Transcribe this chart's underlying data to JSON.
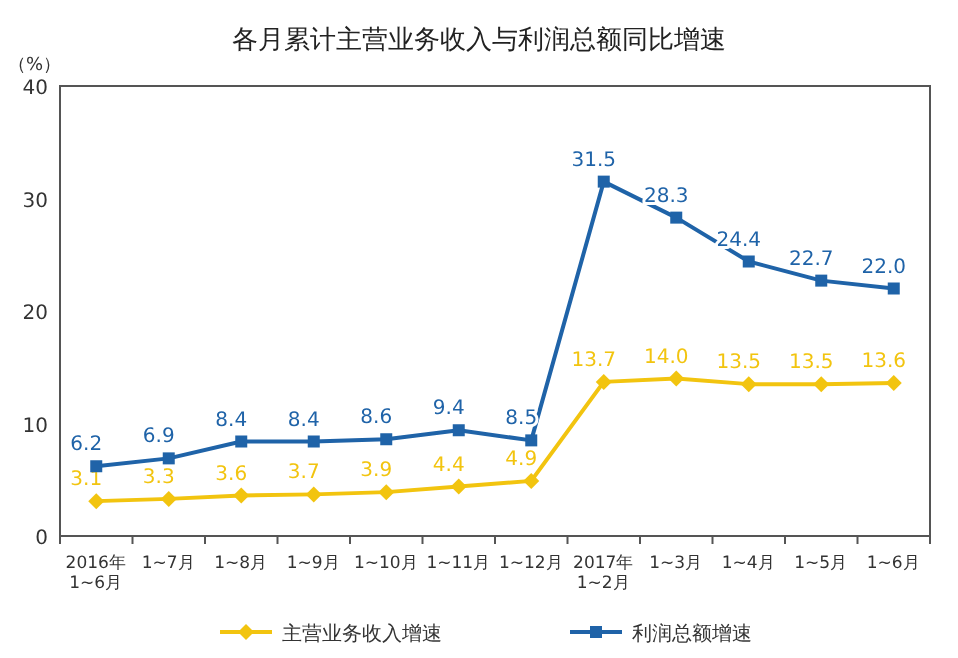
{
  "chart_data": {
    "type": "line",
    "title": "各月累计主营业务收入与利润总额同比增速",
    "ylabel": "（%）",
    "categories": [
      "2016年\n1~6月",
      "1~7月",
      "1~8月",
      "1~9月",
      "1~10月",
      "1~11月",
      "1~12月",
      "2017年\n1~2月",
      "1~3月",
      "1~4月",
      "1~5月",
      "1~6月"
    ],
    "series": [
      {
        "name": "主营业务收入增速",
        "color": "#f2c40f",
        "marker": "diamond",
        "values": [
          3.1,
          3.3,
          3.6,
          3.7,
          3.9,
          4.4,
          4.9,
          13.7,
          14.0,
          13.5,
          13.5,
          13.6
        ],
        "value_labels": [
          "3.1",
          "3.3",
          "3.6",
          "3.7",
          "3.9",
          "4.4",
          "4.9",
          "13.7",
          "14.0",
          "13.5",
          "13.5",
          "13.6"
        ]
      },
      {
        "name": "利润总额增速",
        "color": "#1f63a8",
        "marker": "square",
        "values": [
          6.2,
          6.9,
          8.4,
          8.4,
          8.6,
          9.4,
          8.5,
          31.5,
          28.3,
          24.4,
          22.7,
          22.0
        ],
        "value_labels": [
          "6.2",
          "6.9",
          "8.4",
          "8.4",
          "8.6",
          "9.4",
          "8.5",
          "31.5",
          "28.3",
          "24.4",
          "22.7",
          "22.0"
        ]
      }
    ],
    "ylim": [
      0,
      40
    ],
    "yticks": [
      0,
      10,
      20,
      30,
      40
    ],
    "legend": "bottom"
  }
}
